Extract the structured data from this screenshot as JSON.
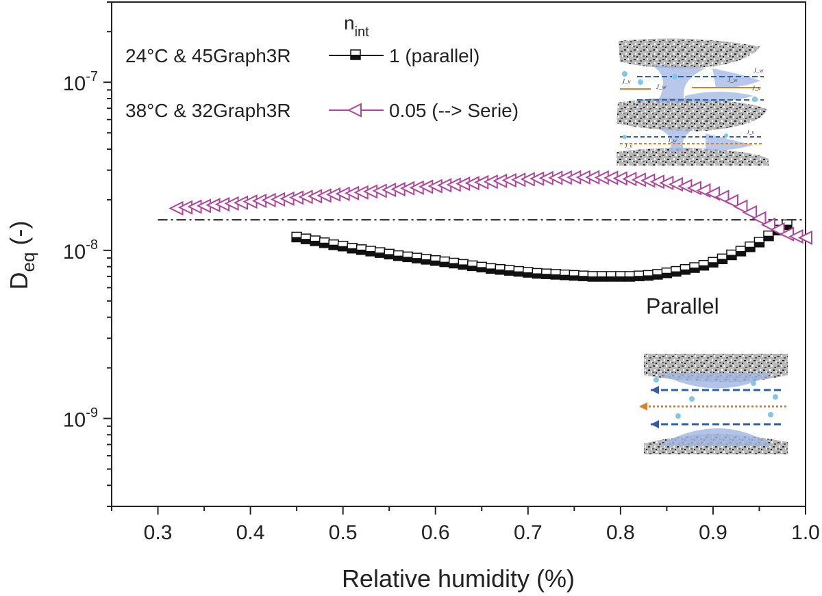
{
  "chart_data": {
    "type": "scatter",
    "xlabel": "Relative humidity (%)",
    "ylabel_main": "D",
    "ylabel_sub": "eq",
    "ylabel_unit": " (-)",
    "xlim": [
      0.25,
      1.0
    ],
    "ylim": [
      3e-10,
      3e-07
    ],
    "yscale": "log",
    "x_ticks": [
      "0.3",
      "0.4",
      "0.5",
      "0.6",
      "0.7",
      "0.8",
      "0.9",
      "1.0"
    ],
    "x_tick_values": [
      0.3,
      0.4,
      0.5,
      0.6,
      0.7,
      0.8,
      0.9,
      1.0
    ],
    "y_ticks": [
      {
        "value": 1e-09,
        "base": "10",
        "exp": "-9"
      },
      {
        "value": 1e-08,
        "base": "10",
        "exp": "-8"
      },
      {
        "value": 1e-07,
        "base": "10",
        "exp": "-7"
      }
    ],
    "legend_header_main": "n",
    "legend_header_sub": "int",
    "legend_position": "top-left",
    "series": [
      {
        "name": "24°C & 45Graph3R",
        "n_int_label": "1  (parallel)",
        "marker": "half-filled-square",
        "color": "#111111",
        "x": [
          0.45,
          0.46,
          0.47,
          0.48,
          0.49,
          0.5,
          0.51,
          0.52,
          0.53,
          0.54,
          0.55,
          0.56,
          0.57,
          0.58,
          0.59,
          0.6,
          0.61,
          0.62,
          0.63,
          0.64,
          0.65,
          0.66,
          0.67,
          0.68,
          0.69,
          0.7,
          0.71,
          0.72,
          0.73,
          0.74,
          0.75,
          0.76,
          0.77,
          0.78,
          0.79,
          0.8,
          0.81,
          0.82,
          0.83,
          0.84,
          0.85,
          0.86,
          0.87,
          0.88,
          0.89,
          0.9,
          0.91,
          0.92,
          0.93,
          0.94,
          0.95,
          0.96,
          0.97,
          0.98
        ],
        "y": [
          1.2e-08,
          1.17e-08,
          1.14e-08,
          1.11e-08,
          1.08e-08,
          1.06e-08,
          1.03e-08,
          1.01e-08,
          9.9e-09,
          9.7e-09,
          9.5e-09,
          9.3e-09,
          9.15e-09,
          9e-09,
          8.85e-09,
          8.7e-09,
          8.55e-09,
          8.4e-09,
          8.25e-09,
          8.1e-09,
          7.95e-09,
          7.8e-09,
          7.7e-09,
          7.6e-09,
          7.5e-09,
          7.4e-09,
          7.3e-09,
          7.25e-09,
          7.2e-09,
          7.15e-09,
          7.1e-09,
          7.05e-09,
          7e-09,
          7e-09,
          7e-09,
          7e-09,
          7e-09,
          7.05e-09,
          7.1e-09,
          7.2e-09,
          7.35e-09,
          7.5e-09,
          7.7e-09,
          7.9e-09,
          8.15e-09,
          8.5e-09,
          8.9e-09,
          9.4e-09,
          9.9e-09,
          1.05e-08,
          1.12e-08,
          1.22e-08,
          1.32e-08,
          1.42e-08
        ]
      },
      {
        "name": "38°C & 32Graph3R",
        "n_int_label": "0.05 (--> Serie)",
        "marker": "left-triangle",
        "color": "#b0449a",
        "x": [
          0.32,
          0.33,
          0.34,
          0.35,
          0.36,
          0.37,
          0.38,
          0.39,
          0.4,
          0.41,
          0.42,
          0.43,
          0.44,
          0.45,
          0.46,
          0.47,
          0.48,
          0.49,
          0.5,
          0.51,
          0.52,
          0.53,
          0.54,
          0.55,
          0.56,
          0.57,
          0.58,
          0.59,
          0.6,
          0.61,
          0.62,
          0.63,
          0.64,
          0.65,
          0.66,
          0.67,
          0.68,
          0.69,
          0.7,
          0.71,
          0.72,
          0.73,
          0.74,
          0.75,
          0.76,
          0.77,
          0.78,
          0.79,
          0.8,
          0.81,
          0.82,
          0.83,
          0.84,
          0.85,
          0.86,
          0.87,
          0.88,
          0.89,
          0.9,
          0.91,
          0.92,
          0.93,
          0.94,
          0.95,
          0.96,
          0.97,
          0.98,
          0.99,
          1.0
        ],
        "y": [
          1.78e-08,
          1.8e-08,
          1.82e-08,
          1.84e-08,
          1.86e-08,
          1.88e-08,
          1.9e-08,
          1.92e-08,
          1.95e-08,
          1.97e-08,
          1.99e-08,
          2.01e-08,
          2.03e-08,
          2.06e-08,
          2.08e-08,
          2.1e-08,
          2.12e-08,
          2.15e-08,
          2.17e-08,
          2.19e-08,
          2.21e-08,
          2.24e-08,
          2.26e-08,
          2.29e-08,
          2.31e-08,
          2.34e-08,
          2.36e-08,
          2.39e-08,
          2.41e-08,
          2.44e-08,
          2.46e-08,
          2.49e-08,
          2.51e-08,
          2.54e-08,
          2.56e-08,
          2.59e-08,
          2.61e-08,
          2.63e-08,
          2.65e-08,
          2.67e-08,
          2.69e-08,
          2.7e-08,
          2.71e-08,
          2.72e-08,
          2.72e-08,
          2.72e-08,
          2.71e-08,
          2.7e-08,
          2.68e-08,
          2.66e-08,
          2.63e-08,
          2.6e-08,
          2.56e-08,
          2.52e-08,
          2.47e-08,
          2.41e-08,
          2.35e-08,
          2.27e-08,
          2.18e-08,
          2.08e-08,
          1.96e-08,
          1.82e-08,
          1.68e-08,
          1.55e-08,
          1.42e-08,
          1.33e-08,
          1.25e-08,
          1.21e-08,
          1.19e-08
        ]
      }
    ],
    "reference_line": {
      "y": 1.52e-08,
      "x_start": 0.3,
      "x_end": 1.0,
      "style": "dash-dot",
      "color": "#111111"
    },
    "annotations": [
      {
        "text": "Parallel",
        "x": 0.867,
        "y": 4.7e-09
      }
    ],
    "insets": [
      {
        "name": "series-pore-schematic",
        "position": "top-right",
        "symbols": [
          "J_w",
          "J_v",
          "J_w",
          "J_v",
          "J_w",
          "J_v",
          "J_w",
          "J_v"
        ]
      },
      {
        "name": "parallel-pore-schematic",
        "position": "bottom-right"
      }
    ],
    "colors": {
      "series_color": "#b0449a",
      "parallel_color": "#111111",
      "water_blue": "#9fb6e3",
      "arrow_blue": "#2c5fa8",
      "arrow_orange": "#d9822b"
    }
  }
}
